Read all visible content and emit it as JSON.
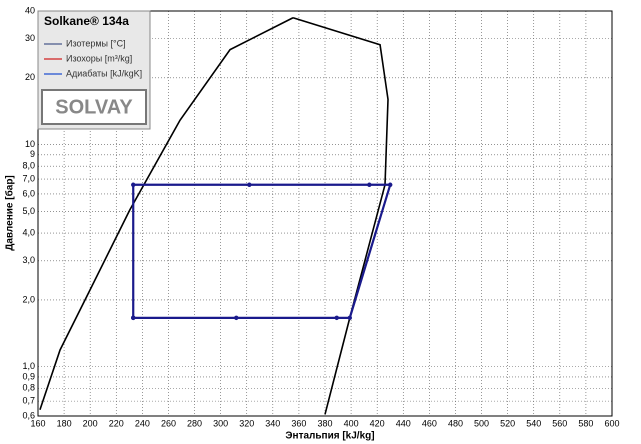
{
  "chart_data": {
    "type": "line",
    "title": "Solkane® 134a",
    "legend": [
      {
        "name": "Изотермы [°C]",
        "color": "#4a5a8a"
      },
      {
        "name": "Изохоры [m³/kg]",
        "color": "#d02020"
      },
      {
        "name": "Адиабаты [kJ/kgK]",
        "color": "#2050d0"
      }
    ],
    "logo": "SOLVAY",
    "x_label": "Энтальпия [kJ/kg]",
    "y_label": "Давление [бар]",
    "log_y": true,
    "grid": true,
    "xlim": [
      160,
      600
    ],
    "xticks": [
      160,
      180,
      200,
      220,
      240,
      260,
      280,
      300,
      320,
      340,
      360,
      380,
      400,
      420,
      440,
      460,
      480,
      500,
      520,
      540,
      560,
      580,
      600
    ],
    "ylim": [
      0.6,
      40
    ],
    "yticks": [
      {
        "value": 0.6,
        "label": "0,6"
      },
      {
        "value": 0.7,
        "label": "0,7"
      },
      {
        "value": 0.8,
        "label": "0,8"
      },
      {
        "value": 0.9,
        "label": "0,9"
      },
      {
        "value": 1.0,
        "label": "1,0"
      },
      {
        "value": 2.0,
        "label": "2,0"
      },
      {
        "value": 3.0,
        "label": "3,0"
      },
      {
        "value": 4.0,
        "label": "4,0"
      },
      {
        "value": 5.0,
        "label": "5,0"
      },
      {
        "value": 6.0,
        "label": "6,0"
      },
      {
        "value": 7.0,
        "label": "7,0"
      },
      {
        "value": 8.0,
        "label": "8,0"
      },
      9,
      10,
      20,
      30,
      40
    ],
    "curves": [
      {
        "color": "#000000",
        "x": [
          161.5,
          176.9,
          199.9,
          230.5,
          268.9,
          307.2,
          355.5
        ],
        "values": [
          0.64,
          1.19,
          2.22,
          5.1,
          12.9,
          26.8,
          37.3
        ]
      },
      {
        "color": "#000000",
        "x": [
          355.5,
          422.2,
          428.3,
          426,
          399,
          380
        ],
        "values": [
          37.3,
          28.2,
          16,
          6.6,
          1.66,
          0.61
        ]
      }
    ],
    "cycle": {
      "color": "#1a1a8c",
      "x": [
        233,
        233,
        322,
        414,
        430,
        399,
        389,
        312,
        233
      ],
      "values": [
        1.66,
        6.6,
        6.6,
        6.6,
        6.6,
        1.66,
        1.66,
        1.66,
        1.66
      ]
    }
  }
}
